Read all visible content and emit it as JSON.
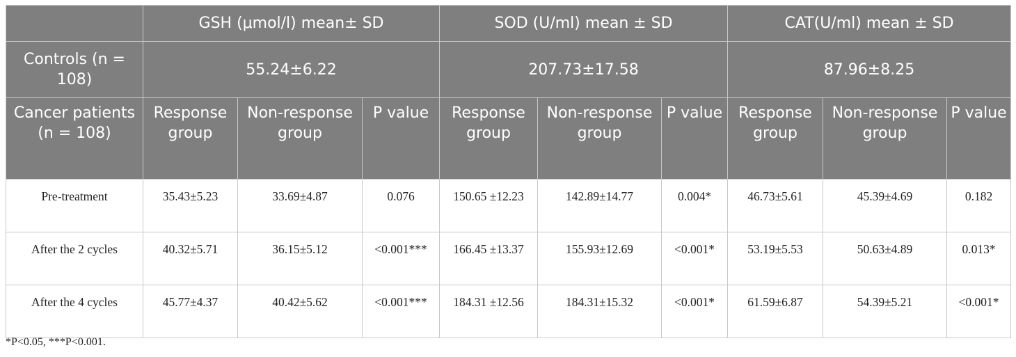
{
  "header": {
    "corner": "",
    "gsh": "GSH (μmol/l) mean± SD",
    "sod": "SOD (U/ml) mean ± SD",
    "cat": "CAT(U/ml) mean ± SD"
  },
  "controls": {
    "label": "Controls (n = 108)",
    "gsh": "55.24±6.22",
    "sod": "207.73±17.58",
    "cat": "87.96±8.25"
  },
  "patients": {
    "label": "Cancer patients (n = 108)",
    "response": "Response group",
    "nonresponse": "Non-response group",
    "pvalue": "P value"
  },
  "rows": [
    {
      "label": "Pre-treatment",
      "gsh_r": "35.43±5.23",
      "gsh_n": "33.69±4.87",
      "gsh_p": "0.076",
      "sod_r": "150.65 ±12.23",
      "sod_n": "142.89±14.77",
      "sod_p": "0.004*",
      "cat_r": "46.73±5.61",
      "cat_n": "45.39±4.69",
      "cat_p": "0.182"
    },
    {
      "label": "After the 2 cycles",
      "gsh_r": "40.32±5.71",
      "gsh_n": "36.15±5.12",
      "gsh_p": "<0.001***",
      "sod_r": "166.45 ±13.37",
      "sod_n": "155.93±12.69",
      "sod_p": "<0.001*",
      "cat_r": "53.19±5.53",
      "cat_n": "50.63±4.89",
      "cat_p": "0.013*"
    },
    {
      "label": "After the 4 cycles",
      "gsh_r": "45.77±4.37",
      "gsh_n": "40.42±5.62",
      "gsh_p": "<0.001***",
      "sod_r": "184.31 ±12.56",
      "sod_n": "184.31±15.32",
      "sod_p": "<0.001*",
      "cat_r": "61.59±6.87",
      "cat_n": "54.39±5.21",
      "cat_p": "<0.001*"
    }
  ],
  "footnote": "*P<0.05, ***P<0.001."
}
